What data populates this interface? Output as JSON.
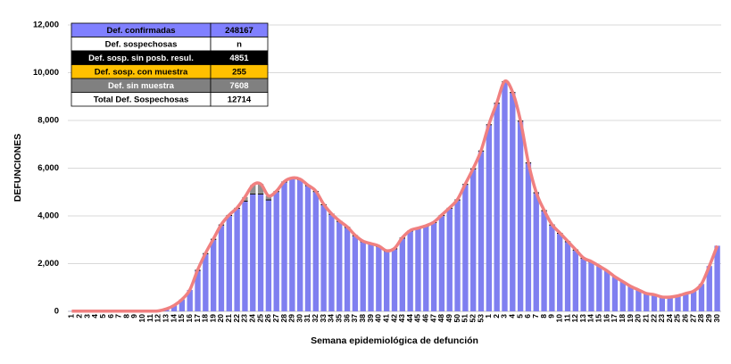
{
  "chart_data": {
    "type": "stacked_bar",
    "y_label": "DEFUNCIONES",
    "x_label": "Semana epidemiológica de defunción",
    "categories": [
      "1",
      "2",
      "3",
      "4",
      "5",
      "6",
      "7",
      "8",
      "9",
      "10",
      "11",
      "12",
      "13",
      "14",
      "15",
      "16",
      "17",
      "18",
      "19",
      "20",
      "21",
      "22",
      "23",
      "24",
      "25",
      "26",
      "27",
      "28",
      "29",
      "30",
      "31",
      "32",
      "33",
      "34",
      "35",
      "36",
      "37",
      "38",
      "39",
      "40",
      "41",
      "42",
      "43",
      "44",
      "45",
      "46",
      "47",
      "48",
      "49",
      "50",
      "51",
      "52",
      "53",
      "1",
      "2",
      "3",
      "4",
      "5",
      "6",
      "7",
      "8",
      "9",
      "10",
      "11",
      "12",
      "13",
      "14",
      "15",
      "16",
      "17",
      "18",
      "19",
      "20",
      "21",
      "22",
      "23",
      "24",
      "25",
      "26",
      "27",
      "28",
      "29",
      "30"
    ],
    "series": [
      {
        "color": "#7f7ff0",
        "values": [
          10,
          10,
          10,
          10,
          10,
          10,
          10,
          10,
          10,
          10,
          10,
          20,
          100,
          250,
          500,
          900,
          1700,
          2400,
          3000,
          3600,
          4000,
          4300,
          4600,
          4900,
          4900,
          4650,
          5000,
          5400,
          5550,
          5500,
          5250,
          5000,
          4450,
          4050,
          3750,
          3500,
          3150,
          2900,
          2800,
          2700,
          2500,
          2600,
          3050,
          3350,
          3450,
          3550,
          3700,
          4000,
          4300,
          4650,
          5300,
          5950,
          6700,
          7800,
          8700,
          9600,
          9150,
          7950,
          6200,
          4950,
          4200,
          3600,
          3250,
          2900,
          2550,
          2200,
          2050,
          1900,
          1700,
          1450,
          1250,
          1050,
          900,
          750,
          700,
          600,
          600,
          650,
          750,
          850,
          1150,
          1900,
          2750
        ]
      },
      {
        "color": "#000000",
        "values": [
          0,
          0,
          0,
          0,
          0,
          0,
          0,
          0,
          0,
          0,
          0,
          0,
          0,
          0,
          0,
          0,
          40,
          40,
          40,
          40,
          40,
          40,
          40,
          40,
          40,
          40,
          40,
          40,
          40,
          40,
          40,
          40,
          40,
          40,
          40,
          40,
          40,
          40,
          40,
          40,
          40,
          40,
          40,
          40,
          40,
          40,
          40,
          40,
          40,
          40,
          40,
          40,
          40,
          40,
          40,
          40,
          40,
          40,
          40,
          40,
          40,
          40,
          40,
          40,
          40,
          40,
          40,
          0,
          0,
          0,
          0,
          0,
          0,
          0,
          0,
          0,
          0,
          0,
          0,
          0,
          0,
          0,
          0
        ]
      },
      {
        "color": "#909090",
        "values": [
          0,
          0,
          0,
          0,
          0,
          0,
          0,
          0,
          0,
          0,
          0,
          0,
          0,
          0,
          0,
          0,
          0,
          0,
          0,
          0,
          0,
          0,
          150,
          350,
          400,
          150,
          0,
          0,
          0,
          0,
          0,
          0,
          0,
          0,
          0,
          0,
          0,
          0,
          0,
          0,
          0,
          0,
          0,
          0,
          0,
          0,
          0,
          0,
          0,
          0,
          0,
          0,
          0,
          0,
          0,
          0,
          0,
          0,
          0,
          0,
          0,
          0,
          0,
          0,
          0,
          0,
          0,
          0,
          0,
          0,
          0,
          0,
          0,
          0,
          0,
          0,
          0,
          0,
          0,
          0,
          0,
          0,
          0
        ]
      }
    ],
    "line_color": "#f08080",
    "ylim": [
      0,
      12000
    ],
    "yticks": [
      0,
      {
        "value": 2000,
        "label": "2,000"
      },
      {
        "value": 4000,
        "label": "4,000"
      },
      {
        "value": 6000,
        "label": "6,000"
      },
      {
        "value": 8000,
        "label": "8,000"
      },
      {
        "value": 10000,
        "label": "10,000"
      },
      {
        "value": 12000,
        "label": "12,000"
      }
    ],
    "grid": true,
    "table": {
      "rows": [
        {
          "label": "Def. confirmadas",
          "value": "248167",
          "fill": "#8080ff",
          "text": "#000000"
        },
        {
          "label": "Def. sospechosas",
          "value": "n",
          "fill": "#ffffff",
          "text": "#000000"
        },
        {
          "label": "Def. sosp. sin posb. resul.",
          "value": "4851",
          "fill": "#000000",
          "text": "#ffffff"
        },
        {
          "label": "Def. sosp. con  muestra",
          "value": "255",
          "fill": "#ffc000",
          "text": "#000000"
        },
        {
          "label": "Def. sin muestra",
          "value": "7608",
          "fill": "#808080",
          "text": "#ffffff"
        },
        {
          "label": "Total Def. Sospechosas",
          "value": "12714",
          "fill": "#ffffff",
          "text": "#000000"
        }
      ]
    }
  }
}
